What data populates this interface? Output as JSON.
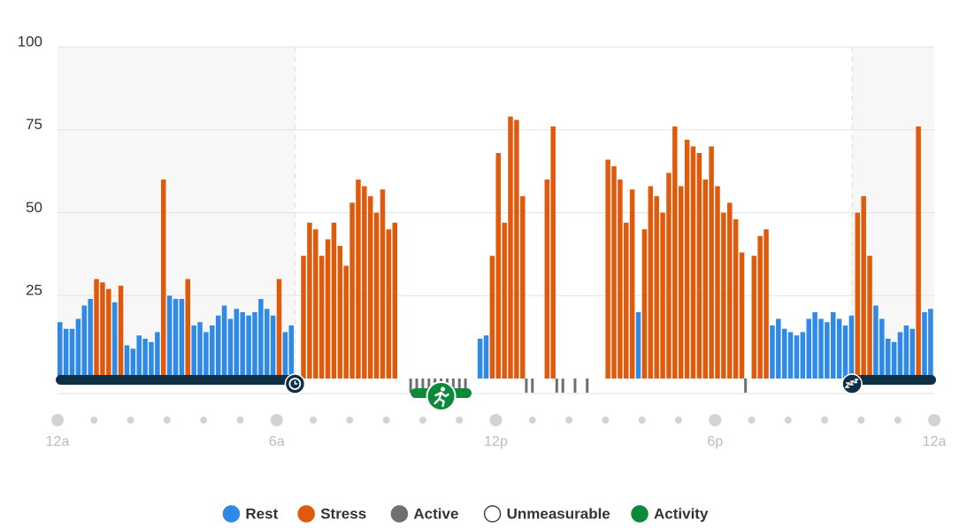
{
  "chart_data": {
    "type": "bar",
    "xlim": [
      0,
      1440
    ],
    "xticks": [
      {
        "value": 0,
        "label": "12a"
      },
      {
        "value": 360,
        "label": "6a"
      },
      {
        "value": 720,
        "label": "12p"
      },
      {
        "value": 1080,
        "label": "6p"
      },
      {
        "value": 1440,
        "label": "12a"
      }
    ],
    "ylim": [
      0,
      100
    ],
    "yticks": [
      25,
      50,
      75,
      100
    ],
    "grid": true,
    "series": [
      {
        "name": "Rest",
        "color": "#2e8ae6",
        "x": [
          0,
          10,
          20,
          30,
          40,
          50,
          90,
          110,
          120,
          130,
          140,
          150,
          160,
          180,
          190,
          200,
          220,
          230,
          240,
          250,
          260,
          270,
          280,
          290,
          300,
          310,
          320,
          330,
          340,
          350,
          370,
          380,
          690,
          700,
          950,
          1170,
          1180,
          1190,
          1200,
          1210,
          1220,
          1230,
          1240,
          1250,
          1260,
          1270,
          1280,
          1290,
          1300,
          1340,
          1350,
          1360,
          1370,
          1380,
          1390,
          1400,
          1420,
          1430
        ],
        "values": [
          17,
          15,
          15,
          18,
          22,
          24,
          23,
          10,
          9,
          13,
          12,
          11,
          14,
          25,
          24,
          24,
          16,
          17,
          14,
          16,
          19,
          22,
          18,
          21,
          20,
          19,
          20,
          24,
          21,
          19,
          14,
          16,
          12,
          13,
          20,
          16,
          18,
          15,
          14,
          13,
          14,
          18,
          20,
          18,
          17,
          20,
          18,
          16,
          19,
          22,
          18,
          12,
          11,
          14,
          16,
          15,
          20,
          21
        ]
      },
      {
        "name": "Stress",
        "color": "#e05a0c",
        "x": [
          60,
          70,
          80,
          100,
          170,
          210,
          360,
          400,
          410,
          420,
          430,
          440,
          450,
          460,
          470,
          480,
          490,
          500,
          510,
          520,
          530,
          540,
          550,
          710,
          720,
          730,
          740,
          750,
          760,
          800,
          810,
          900,
          910,
          920,
          930,
          940,
          960,
          970,
          980,
          990,
          1000,
          1010,
          1020,
          1030,
          1040,
          1050,
          1060,
          1070,
          1080,
          1090,
          1100,
          1110,
          1120,
          1140,
          1150,
          1160,
          1310,
          1320,
          1330,
          1410
        ],
        "values": [
          30,
          29,
          27,
          28,
          60,
          30,
          30,
          37,
          47,
          45,
          37,
          42,
          47,
          40,
          34,
          53,
          60,
          58,
          55,
          50,
          57,
          45,
          47,
          37,
          68,
          47,
          79,
          78,
          55,
          60,
          76,
          66,
          64,
          60,
          47,
          57,
          45,
          58,
          55,
          50,
          62,
          76,
          58,
          72,
          70,
          68,
          60,
          70,
          58,
          50,
          53,
          48,
          38,
          37,
          43,
          45,
          50,
          55,
          37,
          76
        ]
      },
      {
        "name": "Active",
        "color": "#6f6f6f",
        "x": [
          580,
          590,
          600,
          610,
          620,
          630,
          640,
          650,
          660,
          670,
          770,
          780,
          820,
          830,
          850,
          870,
          1130
        ],
        "values": [
          0,
          0,
          0,
          0,
          0,
          0,
          0,
          0,
          0,
          0,
          0,
          0,
          0,
          0,
          0,
          0,
          0
        ]
      },
      {
        "name": "Unmeasurable",
        "color": "#ffffff"
      }
    ],
    "activity": {
      "name": "Activity",
      "color": "#0c8a3a",
      "start": 580,
      "end": 680
    },
    "sleep": [
      {
        "start": 0,
        "end": 390
      },
      {
        "start": 1305,
        "end": 1440
      }
    ]
  }
}
